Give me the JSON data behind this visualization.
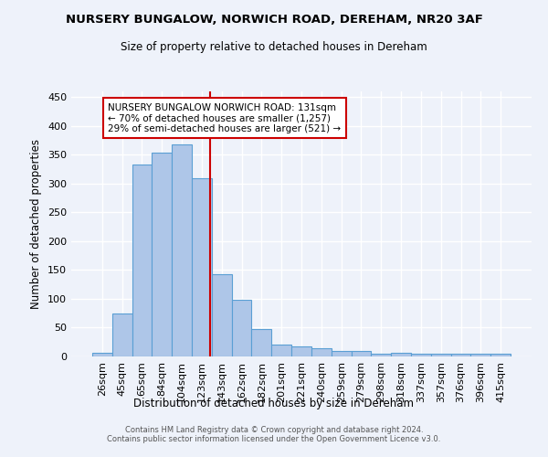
{
  "title": "NURSERY BUNGALOW, NORWICH ROAD, DEREHAM, NR20 3AF",
  "subtitle": "Size of property relative to detached houses in Dereham",
  "xlabel": "Distribution of detached houses by size in Dereham",
  "ylabel": "Number of detached properties",
  "categories": [
    "26sqm",
    "45sqm",
    "65sqm",
    "84sqm",
    "104sqm",
    "123sqm",
    "143sqm",
    "162sqm",
    "182sqm",
    "201sqm",
    "221sqm",
    "240sqm",
    "259sqm",
    "279sqm",
    "298sqm",
    "318sqm",
    "337sqm",
    "357sqm",
    "376sqm",
    "396sqm",
    "415sqm"
  ],
  "values": [
    7,
    75,
    333,
    353,
    368,
    310,
    143,
    98,
    47,
    20,
    18,
    14,
    10,
    9,
    5,
    6,
    5,
    4,
    4,
    4,
    4
  ],
  "bar_color": "#aec6e8",
  "bar_edge_color": "#5a9fd4",
  "red_line_index": 5.4,
  "annotation_text": "NURSERY BUNGALOW NORWICH ROAD: 131sqm\n← 70% of detached houses are smaller (1,257)\n29% of semi-detached houses are larger (521) →",
  "annotation_box_color": "#ffffff",
  "annotation_box_edge_color": "#cc0000",
  "red_line_color": "#cc0000",
  "ylim": [
    0,
    460
  ],
  "yticks": [
    0,
    50,
    100,
    150,
    200,
    250,
    300,
    350,
    400,
    450
  ],
  "background_color": "#eef2fa",
  "grid_color": "#ffffff",
  "footer_line1": "Contains HM Land Registry data © Crown copyright and database right 2024.",
  "footer_line2": "Contains public sector information licensed under the Open Government Licence v3.0."
}
